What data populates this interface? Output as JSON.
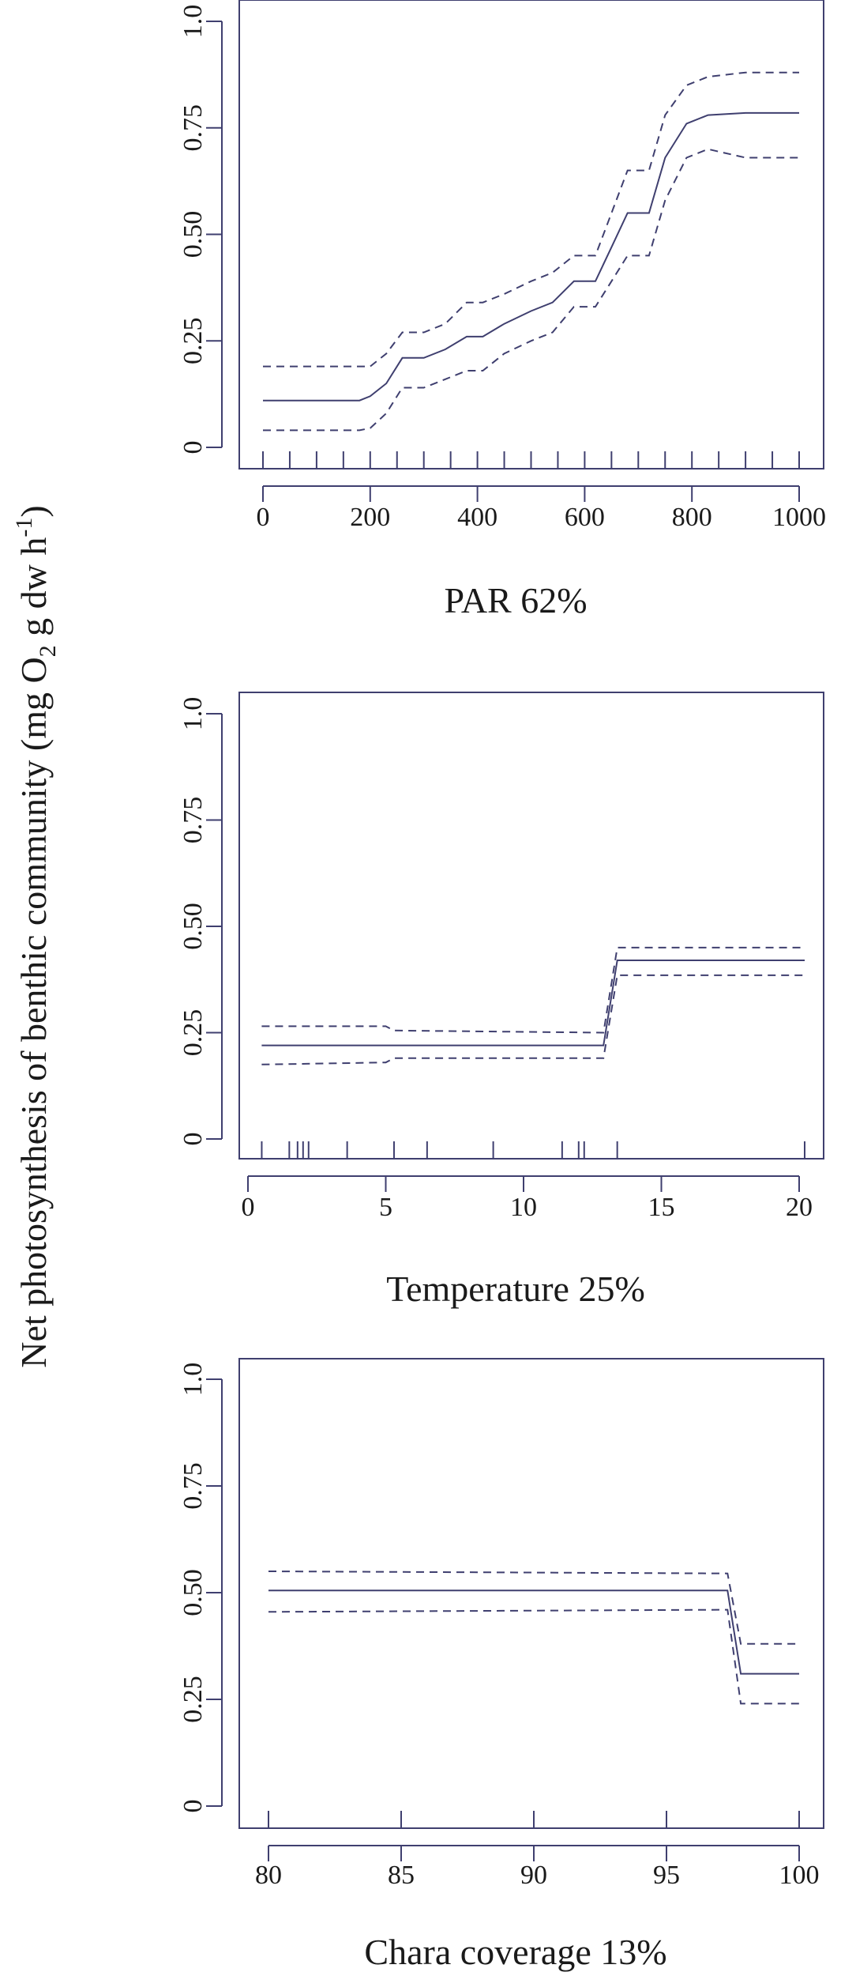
{
  "y_axis_title": {
    "main": "Net photosynthesis of benthic community (mg O",
    "sub2": "2",
    "mid": " g dw h",
    "sup": "-1",
    "end": ")"
  },
  "chart_data": [
    {
      "type": "line",
      "xlabel": "PAR 62%",
      "xlim": [
        0,
        1000
      ],
      "ylim": [
        0,
        1
      ],
      "xticks": [
        0,
        200,
        400,
        600,
        800,
        1000
      ],
      "xtick_labels": [
        "0",
        "200",
        "400",
        "600",
        "800",
        "1000"
      ],
      "yticks": [
        0,
        0.25,
        0.5,
        0.75,
        1.0
      ],
      "ytick_labels": [
        "0",
        "0.25",
        "0.50",
        "0.75",
        "1.0"
      ],
      "rug": [
        0,
        50,
        100,
        150,
        200,
        250,
        300,
        350,
        400,
        450,
        500,
        550,
        600,
        650,
        700,
        750,
        800,
        850,
        900,
        950,
        1000
      ],
      "series": [
        {
          "role": "fit",
          "x": [
            0,
            180,
            200,
            230,
            260,
            300,
            340,
            380,
            410,
            450,
            500,
            540,
            580,
            620,
            650,
            680,
            720,
            750,
            790,
            830,
            900,
            1000
          ],
          "values": [
            0.11,
            0.11,
            0.12,
            0.15,
            0.21,
            0.21,
            0.23,
            0.26,
            0.26,
            0.29,
            0.32,
            0.34,
            0.39,
            0.39,
            0.47,
            0.55,
            0.55,
            0.68,
            0.76,
            0.78,
            0.785,
            0.785
          ]
        },
        {
          "role": "upper",
          "x": [
            0,
            180,
            200,
            230,
            260,
            300,
            340,
            380,
            410,
            450,
            500,
            540,
            580,
            620,
            650,
            680,
            720,
            750,
            790,
            830,
            900,
            1000
          ],
          "values": [
            0.19,
            0.19,
            0.19,
            0.22,
            0.27,
            0.27,
            0.29,
            0.34,
            0.34,
            0.36,
            0.39,
            0.41,
            0.45,
            0.45,
            0.55,
            0.65,
            0.65,
            0.78,
            0.85,
            0.87,
            0.88,
            0.88
          ]
        },
        {
          "role": "lower",
          "x": [
            0,
            180,
            200,
            230,
            260,
            300,
            340,
            380,
            410,
            450,
            500,
            540,
            580,
            620,
            650,
            680,
            720,
            750,
            790,
            830,
            900,
            1000
          ],
          "values": [
            0.04,
            0.04,
            0.045,
            0.08,
            0.14,
            0.14,
            0.16,
            0.18,
            0.18,
            0.22,
            0.25,
            0.27,
            0.33,
            0.33,
            0.39,
            0.45,
            0.45,
            0.58,
            0.68,
            0.7,
            0.68,
            0.68
          ]
        }
      ]
    },
    {
      "type": "line",
      "xlabel": "Temperature 25%",
      "xlim": [
        0,
        20
      ],
      "ylim": [
        0,
        1
      ],
      "xticks": [
        0,
        5,
        10,
        15,
        20
      ],
      "xtick_labels": [
        "0",
        "5",
        "10",
        "15",
        "20"
      ],
      "yticks": [
        0,
        0.25,
        0.5,
        0.75,
        1.0
      ],
      "ytick_labels": [
        "0",
        "0.25",
        "0.50",
        "0.75",
        "1.0"
      ],
      "rug": [
        0.5,
        1.5,
        1.8,
        2.0,
        2.2,
        3.6,
        5.3,
        6.5,
        8.9,
        11.4,
        12.0,
        12.2,
        13.4,
        20.2
      ],
      "series": [
        {
          "role": "fit",
          "x": [
            0.5,
            12.9,
            13.4,
            20.2
          ],
          "values": [
            0.22,
            0.22,
            0.42,
            0.42
          ]
        },
        {
          "role": "upper",
          "x": [
            0.5,
            5.0,
            5.3,
            12.9,
            13.4,
            20.2
          ],
          "values": [
            0.265,
            0.265,
            0.255,
            0.25,
            0.45,
            0.45
          ]
        },
        {
          "role": "lower",
          "x": [
            0.5,
            5.0,
            5.3,
            12.9,
            13.4,
            20.2
          ],
          "values": [
            0.175,
            0.18,
            0.19,
            0.19,
            0.385,
            0.385
          ]
        }
      ]
    },
    {
      "type": "line",
      "xlabel": "Chara coverage 13%",
      "xlim": [
        80,
        100
      ],
      "ylim": [
        0,
        1
      ],
      "xticks": [
        80,
        85,
        90,
        95,
        100
      ],
      "xtick_labels": [
        "80",
        "85",
        "90",
        "95",
        "100"
      ],
      "yticks": [
        0,
        0.25,
        0.5,
        0.75,
        1.0
      ],
      "ytick_labels": [
        "0",
        "0.25",
        "0.50",
        "0.75",
        "1.0"
      ],
      "rug": [
        80,
        85,
        90,
        95,
        100
      ],
      "series": [
        {
          "role": "fit",
          "x": [
            80,
            97.3,
            97.8,
            100
          ],
          "values": [
            0.505,
            0.505,
            0.31,
            0.31
          ]
        },
        {
          "role": "upper",
          "x": [
            80,
            97.3,
            97.8,
            100
          ],
          "values": [
            0.55,
            0.545,
            0.38,
            0.38
          ]
        },
        {
          "role": "lower",
          "x": [
            80,
            97.3,
            97.8,
            100
          ],
          "values": [
            0.455,
            0.46,
            0.24,
            0.24
          ]
        }
      ]
    }
  ]
}
